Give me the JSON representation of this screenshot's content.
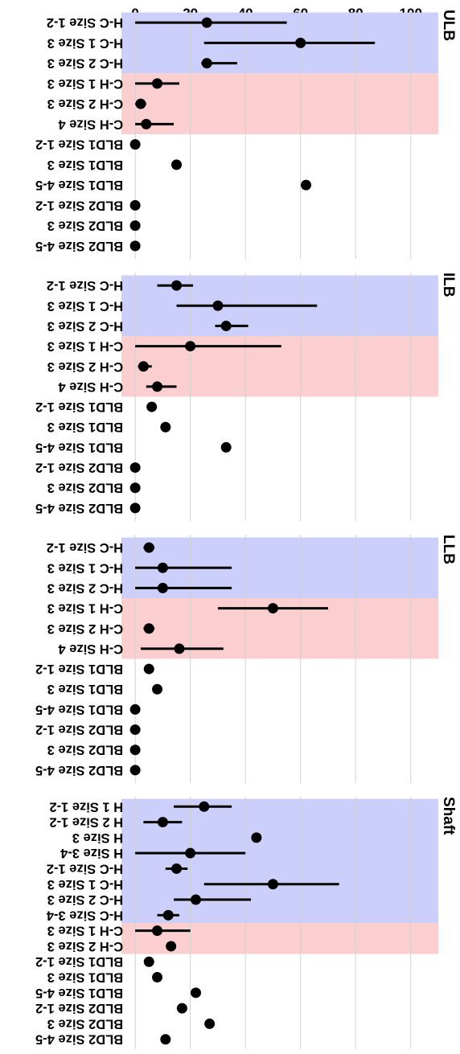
{
  "chart_data": {
    "type": "scatter",
    "orientation": "rotated-90",
    "ylim": [
      -5,
      110
    ],
    "y_ticks": [
      0,
      20,
      40,
      60,
      80,
      100
    ],
    "grid": true,
    "colors": {
      "blue_band": "#cccff9",
      "red_band": "#fbcfcf",
      "grid": "#d0d0d0",
      "marker": "#000000"
    },
    "panels": [
      {
        "title": "ULB",
        "categories": [
          "H-C Size 1-2",
          "H-C 1 Size 3",
          "H-C 2 Size 3",
          "C-H 1 Size 3",
          "C-H 2 Size 3",
          "C-H Size 4",
          "BLD1 Size 1-2",
          "BLD1 Size 3",
          "BLD1 Size 4-5",
          "BLD2 Size 1-2",
          "BLD2 Size 3",
          "BLD2 Size 4-5"
        ],
        "values": [
          26,
          60,
          26,
          8,
          2,
          4,
          0,
          15,
          62,
          0,
          0,
          0
        ],
        "low": [
          0,
          25,
          24,
          0,
          0,
          0,
          null,
          null,
          null,
          null,
          null,
          null
        ],
        "high": [
          55,
          87,
          37,
          16,
          4,
          14,
          null,
          null,
          null,
          null,
          null,
          null
        ],
        "blue_band": [
          0,
          2
        ],
        "red_band": [
          3,
          5
        ]
      },
      {
        "title": "ILB",
        "categories": [
          "H-C Size 1-2",
          "H-C 1 Size 3",
          "H-C 2 Size 3",
          "C-H 1 Size 3",
          "C-H 2 Size 3",
          "C-H Size 4",
          "BLD1 Size 1-2",
          "BLD1 Size 3",
          "BLD1 Size 4-5",
          "BLD2 Size 1-2",
          "BLD2 Size 3",
          "BLD2 Size 4-5"
        ],
        "values": [
          15,
          30,
          33,
          20,
          3,
          8,
          6,
          11,
          33,
          0,
          0,
          0
        ],
        "low": [
          8,
          15,
          29,
          0,
          1,
          4,
          null,
          null,
          null,
          null,
          null,
          null
        ],
        "high": [
          21,
          66,
          41,
          53,
          6,
          15,
          null,
          null,
          null,
          null,
          null,
          null
        ],
        "blue_band": [
          0,
          2
        ],
        "red_band": [
          3,
          5
        ]
      },
      {
        "title": "LLB",
        "categories": [
          "H-C Size 1-2",
          "H-C 1 Size 3",
          "H-C 2 Size 3",
          "C-H 1 Size 3",
          "C-H 2 Size 3",
          "C-H Size 4",
          "BLD1 Size 1-2",
          "BLD1 Size 3",
          "BLD1 Size 4-5",
          "BLD2 Size 1-2",
          "BLD2 Size 3",
          "BLD2 Size 4-5"
        ],
        "values": [
          5,
          10,
          10,
          50,
          5,
          16,
          5,
          8,
          0,
          0,
          0,
          0
        ],
        "low": [
          3,
          0,
          0,
          30,
          3,
          2,
          null,
          null,
          null,
          null,
          null,
          null
        ],
        "high": [
          7,
          35,
          35,
          70,
          7,
          32,
          null,
          null,
          null,
          null,
          null,
          null
        ],
        "blue_band": [
          0,
          2
        ],
        "red_band": [
          3,
          5
        ]
      },
      {
        "title": "Shaft",
        "categories": [
          "H 1 Size 1-2",
          "H 2 Size 1-2",
          "H Size 3",
          "H Size 3-4",
          "H-C Size 1-2",
          "H-C 1 Size 3",
          "H-C 2 Size 3",
          "H-C Size 3-4",
          "C-H 1 Size 3",
          "C-H 2 Size 3",
          "BLD1 Size 1-2",
          "BLD1 Size 3",
          "BLD1 Size 4-5",
          "BLD2 Size 1-2",
          "BLD2 Size 3",
          "BLD2 Size 4-5"
        ],
        "values": [
          25,
          10,
          44,
          20,
          15,
          50,
          22,
          12,
          8,
          13,
          5,
          8,
          22,
          17,
          27,
          11
        ],
        "low": [
          14,
          3,
          null,
          0,
          11,
          25,
          14,
          8,
          0,
          null,
          null,
          null,
          null,
          null,
          null,
          null
        ],
        "high": [
          35,
          17,
          null,
          40,
          19,
          74,
          42,
          16,
          20,
          null,
          null,
          null,
          null,
          null,
          null,
          null
        ],
        "blue_band": [
          0,
          7
        ],
        "red_band": [
          8,
          9
        ]
      }
    ]
  }
}
